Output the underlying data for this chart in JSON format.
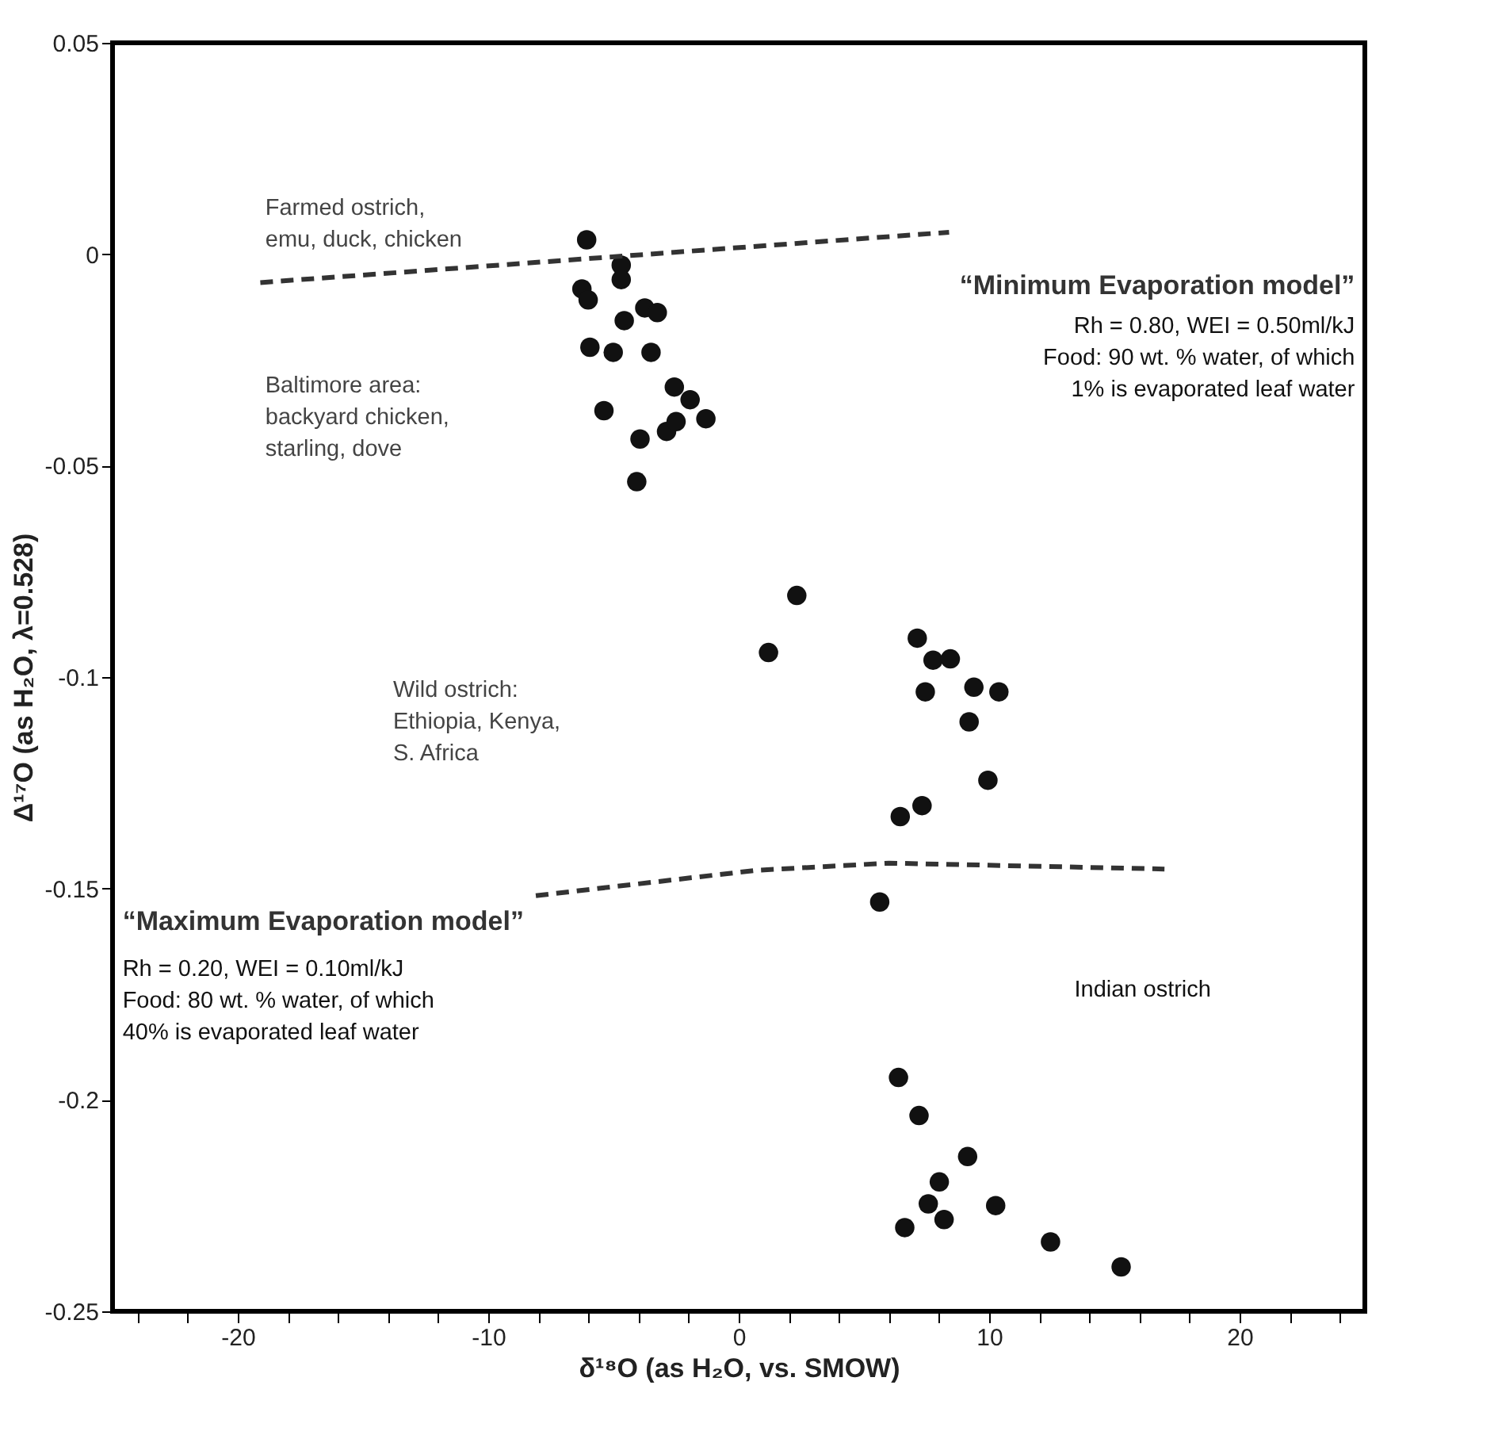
{
  "chart_data": {
    "type": "scatter",
    "xlabel": "δ¹⁸O (as H₂O, vs. SMOW)",
    "ylabel": "Δ¹⁷O (as H₂O, λ=0.528)",
    "xlim": [
      -25,
      25
    ],
    "ylim": [
      -0.25,
      0.05
    ],
    "xticks": [
      {
        "value": -24,
        "label": null
      },
      {
        "value": -22,
        "label": null
      },
      -20,
      {
        "value": -18,
        "label": null
      },
      {
        "value": -16,
        "label": null
      },
      {
        "value": -14,
        "label": null
      },
      {
        "value": -12,
        "label": null
      },
      -10,
      {
        "value": -8,
        "label": null
      },
      {
        "value": -6,
        "label": null
      },
      {
        "value": -4,
        "label": null
      },
      {
        "value": -2,
        "label": null
      },
      0,
      {
        "value": 2,
        "label": null
      },
      {
        "value": 4,
        "label": null
      },
      {
        "value": 6,
        "label": null
      },
      {
        "value": 8,
        "label": null
      },
      10,
      {
        "value": 12,
        "label": null
      },
      {
        "value": 14,
        "label": null
      },
      {
        "value": 16,
        "label": null
      },
      {
        "value": 18,
        "label": null
      },
      20,
      {
        "value": 22,
        "label": null
      },
      {
        "value": 24,
        "label": null
      }
    ],
    "yticks": [
      0.05,
      0,
      -0.05,
      -0.1,
      -0.15,
      -0.2,
      -0.25
    ],
    "grid": false,
    "marker": "circle",
    "series": [
      {
        "type": "scatter",
        "color": "#111111",
        "x": [
          -6.07,
          -4.69,
          -4.69,
          -6.26,
          -6.01,
          -3.75,
          -3.25,
          -4.57,
          -5.94,
          -5.01,
          -3.5,
          -2.57,
          -5.38,
          -1.94,
          -1.31,
          -2.88,
          -2.5,
          -3.94,
          -4.07,
          2.32,
          1.19,
          7.13,
          7.76,
          8.45,
          7.45,
          9.39,
          10.39,
          9.2,
          9.95,
          6.45,
          7.32,
          5.63,
          6.38,
          7.2,
          9.14,
          8.01,
          7.57,
          8.2,
          6.63,
          10.26,
          12.45,
          15.27
        ],
        "values": [
          0.0034,
          -0.0026,
          -0.006,
          -0.0082,
          -0.0108,
          -0.0127,
          -0.0138,
          -0.0157,
          -0.022,
          -0.0232,
          -0.0232,
          -0.0314,
          -0.037,
          -0.0344,
          -0.0389,
          -0.0419,
          -0.0396,
          -0.0437,
          -0.0538,
          -0.0807,
          -0.0942,
          -0.0908,
          -0.096,
          -0.0957,
          -0.1035,
          -0.1024,
          -0.1035,
          -0.1106,
          -0.1244,
          -0.133,
          -0.1304,
          -0.1532,
          -0.1947,
          -0.2037,
          -0.2134,
          -0.2194,
          -0.2246,
          -0.2283,
          -0.2302,
          -0.225,
          -0.2336,
          -0.2395
        ]
      },
      {
        "type": "line",
        "name": "“Minimum Evaporation model”",
        "color": "#333333",
        "line_style": "dashed",
        "marker": "none",
        "x": [
          -19.1,
          8.4
        ],
        "values": [
          -0.0067,
          0.0052
        ]
      },
      {
        "type": "line",
        "name": "“Maximum Evaporation model”",
        "color": "#333333",
        "line_style": "dashed",
        "marker": "none",
        "x": [
          -8.1,
          0.7,
          6,
          17
        ],
        "values": [
          -0.1517,
          -0.1457,
          -0.144,
          -0.1454
        ]
      }
    ],
    "annotations": [
      "Farmed ostrich,\nemu, duck, chicken",
      "Baltimore area:\nbackyard chicken,\nstarling, dove",
      "Wild ostrich:\nEthiopia, Kenya,\nS. Africa",
      "Indian ostrich",
      "Rh = 0.80, WEI = 0.50ml/kJ\nFood: 90 wt. % water, of which\n1% is evaporated leaf water",
      "Rh = 0.20, WEI = 0.10ml/kJ\nFood: 80 wt. % water, of which\n40% is evaporated leaf water"
    ]
  }
}
